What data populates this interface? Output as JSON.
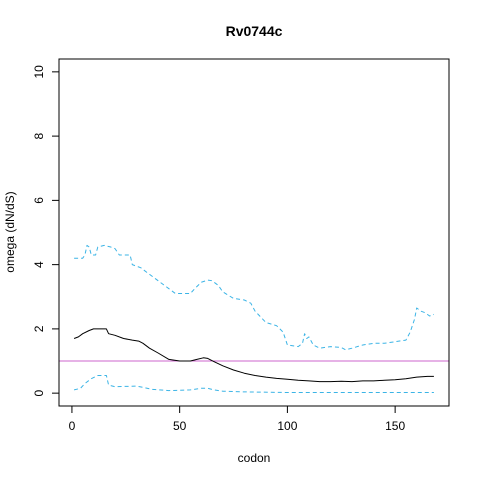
{
  "chart_data": {
    "type": "line",
    "title": "Rv0744c",
    "xlabel": "codon",
    "ylabel": "omega (dN/dS)",
    "xlim": [
      -6,
      175
    ],
    "ylim": [
      -0.4,
      10.4
    ],
    "xticks": [
      0,
      50,
      100,
      150
    ],
    "yticks": [
      0,
      2,
      4,
      6,
      8,
      10
    ],
    "grid": false,
    "legend": null,
    "reference_line": {
      "y": 1,
      "color": "#cc66cc"
    },
    "series": [
      {
        "role": "estimate",
        "color": "#000000",
        "linestyle": "solid",
        "points": [
          [
            1,
            1.7
          ],
          [
            3,
            1.75
          ],
          [
            5,
            1.85
          ],
          [
            8,
            1.95
          ],
          [
            10,
            2.0
          ],
          [
            12,
            2.0
          ],
          [
            15,
            2.0
          ],
          [
            16,
            2.0
          ],
          [
            17,
            1.85
          ],
          [
            20,
            1.8
          ],
          [
            24,
            1.7
          ],
          [
            28,
            1.65
          ],
          [
            31,
            1.62
          ],
          [
            33,
            1.55
          ],
          [
            36,
            1.4
          ],
          [
            40,
            1.25
          ],
          [
            45,
            1.05
          ],
          [
            50,
            1.0
          ],
          [
            55,
            1.0
          ],
          [
            58,
            1.05
          ],
          [
            61,
            1.1
          ],
          [
            63,
            1.08
          ],
          [
            66,
            0.98
          ],
          [
            70,
            0.85
          ],
          [
            75,
            0.72
          ],
          [
            80,
            0.62
          ],
          [
            85,
            0.55
          ],
          [
            90,
            0.5
          ],
          [
            95,
            0.46
          ],
          [
            100,
            0.43
          ],
          [
            105,
            0.4
          ],
          [
            110,
            0.38
          ],
          [
            115,
            0.36
          ],
          [
            120,
            0.36
          ],
          [
            125,
            0.37
          ],
          [
            130,
            0.36
          ],
          [
            135,
            0.38
          ],
          [
            140,
            0.38
          ],
          [
            145,
            0.4
          ],
          [
            150,
            0.42
          ],
          [
            155,
            0.45
          ],
          [
            160,
            0.5
          ],
          [
            165,
            0.52
          ],
          [
            168,
            0.52
          ]
        ]
      },
      {
        "role": "upper-bound",
        "color": "#3bb4e6",
        "linestyle": "dashed",
        "points": [
          [
            1,
            4.2
          ],
          [
            5,
            4.2
          ],
          [
            6,
            4.3
          ],
          [
            7,
            4.6
          ],
          [
            8,
            4.55
          ],
          [
            9,
            4.3
          ],
          [
            11,
            4.3
          ],
          [
            12,
            4.55
          ],
          [
            15,
            4.6
          ],
          [
            18,
            4.55
          ],
          [
            20,
            4.5
          ],
          [
            22,
            4.3
          ],
          [
            27,
            4.3
          ],
          [
            28,
            4.0
          ],
          [
            32,
            3.9
          ],
          [
            35,
            3.75
          ],
          [
            38,
            3.6
          ],
          [
            42,
            3.4
          ],
          [
            45,
            3.25
          ],
          [
            48,
            3.1
          ],
          [
            55,
            3.1
          ],
          [
            57,
            3.25
          ],
          [
            60,
            3.45
          ],
          [
            63,
            3.52
          ],
          [
            65,
            3.5
          ],
          [
            68,
            3.35
          ],
          [
            70,
            3.15
          ],
          [
            75,
            2.95
          ],
          [
            80,
            2.9
          ],
          [
            83,
            2.8
          ],
          [
            85,
            2.55
          ],
          [
            90,
            2.2
          ],
          [
            95,
            2.1
          ],
          [
            98,
            1.9
          ],
          [
            100,
            1.5
          ],
          [
            105,
            1.45
          ],
          [
            107,
            1.55
          ],
          [
            108,
            1.85
          ],
          [
            109,
            1.7
          ],
          [
            110,
            1.75
          ],
          [
            112,
            1.5
          ],
          [
            115,
            1.4
          ],
          [
            120,
            1.45
          ],
          [
            125,
            1.42
          ],
          [
            127,
            1.35
          ],
          [
            130,
            1.4
          ],
          [
            135,
            1.5
          ],
          [
            140,
            1.55
          ],
          [
            145,
            1.55
          ],
          [
            150,
            1.6
          ],
          [
            155,
            1.65
          ],
          [
            157,
            1.9
          ],
          [
            159,
            2.3
          ],
          [
            160,
            2.65
          ],
          [
            162,
            2.55
          ],
          [
            164,
            2.5
          ],
          [
            166,
            2.4
          ],
          [
            168,
            2.45
          ]
        ]
      },
      {
        "role": "lower-bound",
        "color": "#3bb4e6",
        "linestyle": "dashed",
        "points": [
          [
            1,
            0.1
          ],
          [
            4,
            0.15
          ],
          [
            6,
            0.3
          ],
          [
            9,
            0.45
          ],
          [
            12,
            0.55
          ],
          [
            16,
            0.55
          ],
          [
            17,
            0.25
          ],
          [
            20,
            0.2
          ],
          [
            30,
            0.22
          ],
          [
            33,
            0.18
          ],
          [
            37,
            0.12
          ],
          [
            45,
            0.08
          ],
          [
            55,
            0.1
          ],
          [
            60,
            0.15
          ],
          [
            63,
            0.15
          ],
          [
            66,
            0.1
          ],
          [
            70,
            0.06
          ],
          [
            80,
            0.04
          ],
          [
            100,
            0.02
          ],
          [
            130,
            0.02
          ],
          [
            168,
            0.02
          ]
        ]
      }
    ]
  }
}
